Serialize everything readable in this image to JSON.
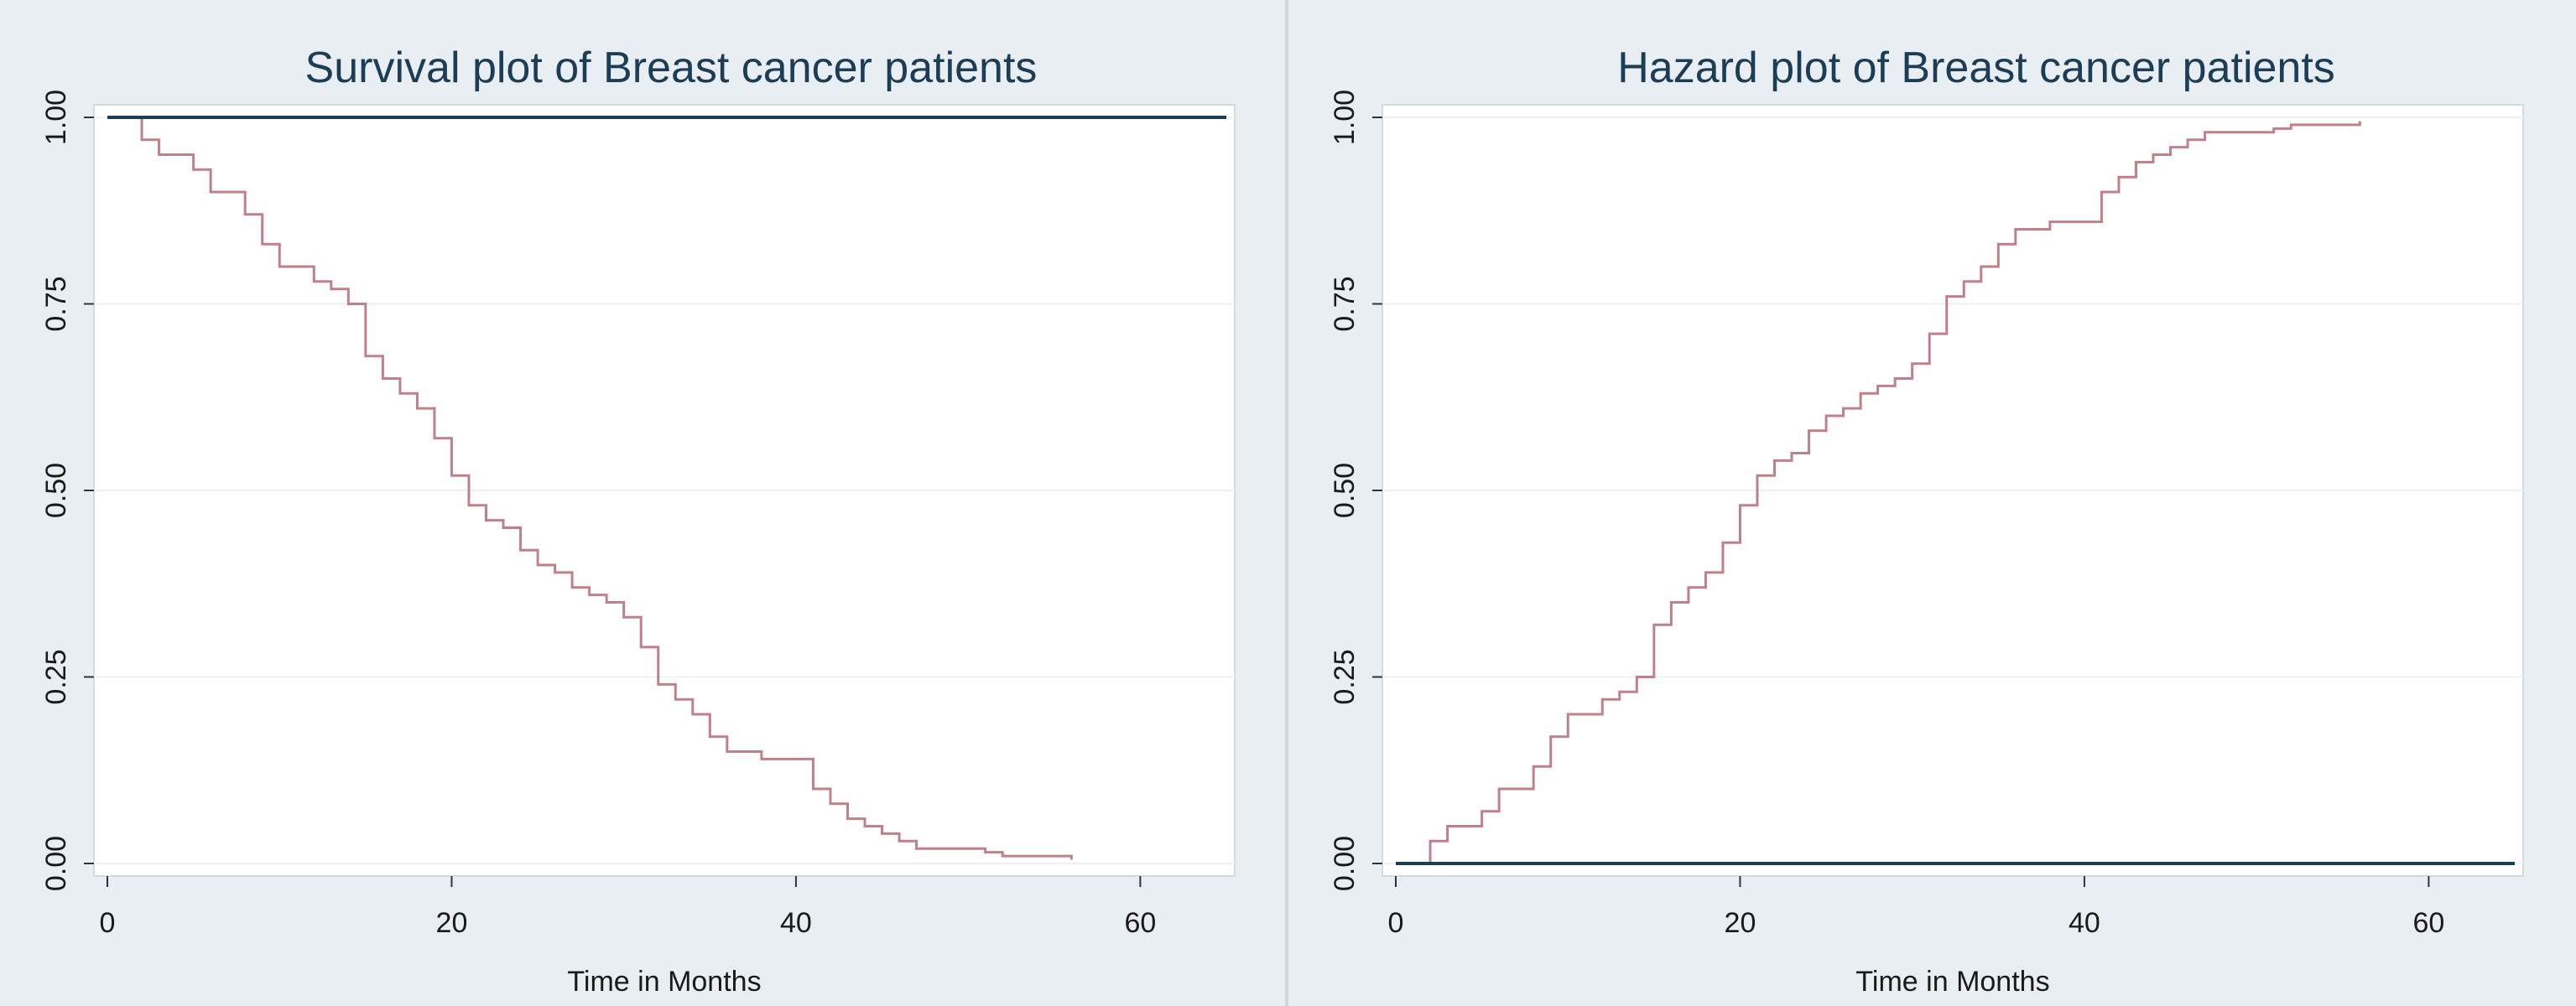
{
  "chart_data": [
    {
      "type": "line",
      "title": "Survival plot of Breast cancer patients",
      "xlabel": "Time in Months",
      "ylabel": "",
      "xlim": [
        0,
        65
      ],
      "ylim": [
        0,
        1
      ],
      "xticks": [
        0,
        20,
        40,
        60
      ],
      "xtick_labels": [
        "0",
        "20",
        "40",
        "60"
      ],
      "yticks": [
        0,
        0.25,
        0.5,
        0.75,
        1
      ],
      "ytick_labels": [
        "0.00",
        "0.25",
        "0.50",
        "0.75",
        "1.00"
      ],
      "grid": true,
      "legend": "none",
      "series": [
        {
          "style": "step",
          "color": "#c0808a",
          "x": [
            0,
            2,
            3,
            5,
            6,
            8,
            9,
            10,
            12,
            13,
            14,
            15,
            16,
            17,
            18,
            19,
            20,
            21,
            22,
            23,
            24,
            25,
            26,
            27,
            28,
            29,
            30,
            31,
            32,
            33,
            34,
            35,
            36,
            38,
            41,
            42,
            43,
            44,
            45,
            46,
            47,
            51,
            52,
            56
          ],
          "y": [
            1.0,
            0.97,
            0.95,
            0.93,
            0.9,
            0.87,
            0.83,
            0.8,
            0.78,
            0.77,
            0.75,
            0.68,
            0.65,
            0.63,
            0.61,
            0.57,
            0.52,
            0.48,
            0.46,
            0.45,
            0.42,
            0.4,
            0.39,
            0.37,
            0.36,
            0.35,
            0.33,
            0.29,
            0.24,
            0.22,
            0.2,
            0.17,
            0.15,
            0.14,
            0.1,
            0.08,
            0.06,
            0.05,
            0.04,
            0.03,
            0.02,
            0.015,
            0.01,
            0.005
          ]
        },
        {
          "style": "line",
          "color": "#1c3d56",
          "x": [
            0,
            65
          ],
          "y": [
            1.0,
            1.0
          ]
        }
      ]
    },
    {
      "type": "line",
      "title": "Hazard plot of Breast cancer patients",
      "xlabel": "Time in Months",
      "ylabel": "",
      "xlim": [
        0,
        65
      ],
      "ylim": [
        0,
        1
      ],
      "xticks": [
        0,
        20,
        40,
        60
      ],
      "xtick_labels": [
        "0",
        "20",
        "40",
        "60"
      ],
      "yticks": [
        0,
        0.25,
        0.5,
        0.75,
        1
      ],
      "ytick_labels": [
        "0.00",
        "0.25",
        "0.50",
        "0.75",
        "1.00"
      ],
      "grid": true,
      "legend": "none",
      "series": [
        {
          "style": "step",
          "color": "#c0808a",
          "x": [
            0,
            2,
            3,
            5,
            6,
            8,
            9,
            10,
            12,
            13,
            14,
            15,
            16,
            17,
            18,
            19,
            20,
            21,
            22,
            23,
            24,
            25,
            26,
            27,
            28,
            29,
            30,
            31,
            32,
            33,
            34,
            35,
            36,
            38,
            41,
            42,
            43,
            44,
            45,
            46,
            47,
            51,
            52,
            56
          ],
          "y": [
            0.0,
            0.03,
            0.05,
            0.07,
            0.1,
            0.13,
            0.17,
            0.2,
            0.22,
            0.23,
            0.25,
            0.32,
            0.35,
            0.37,
            0.39,
            0.43,
            0.48,
            0.52,
            0.54,
            0.55,
            0.58,
            0.6,
            0.61,
            0.63,
            0.64,
            0.65,
            0.67,
            0.71,
            0.76,
            0.78,
            0.8,
            0.83,
            0.85,
            0.86,
            0.9,
            0.92,
            0.94,
            0.95,
            0.96,
            0.97,
            0.98,
            0.985,
            0.99,
            0.995
          ]
        },
        {
          "style": "line",
          "color": "#1c3d56",
          "x": [
            0,
            65
          ],
          "y": [
            0.0,
            0.0
          ]
        }
      ]
    }
  ]
}
